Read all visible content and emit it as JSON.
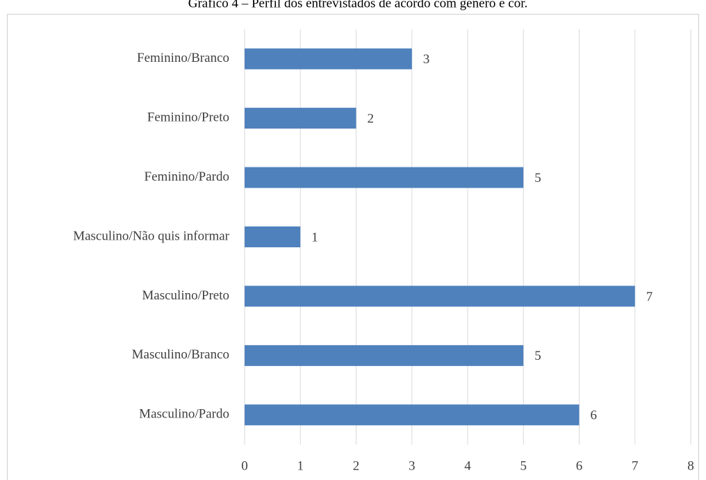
{
  "chart_data": {
    "type": "bar",
    "orientation": "horizontal",
    "title": "Gráfico 4 – Perfil dos entrevistados de acordo com gênero e cor.",
    "categories": [
      "Feminino/Branco",
      "Feminino/Preto",
      "Feminino/Pardo",
      "Masculino/Não quis informar",
      "Masculino/Preto",
      "Masculino/Branco",
      "Masculino/Pardo"
    ],
    "values": [
      3,
      2,
      5,
      1,
      7,
      5,
      6
    ],
    "color": "#4f81bd",
    "xlim": [
      0,
      8
    ],
    "xticks": [
      0,
      1,
      2,
      3,
      4,
      5,
      6,
      7,
      8
    ],
    "grid": true
  }
}
